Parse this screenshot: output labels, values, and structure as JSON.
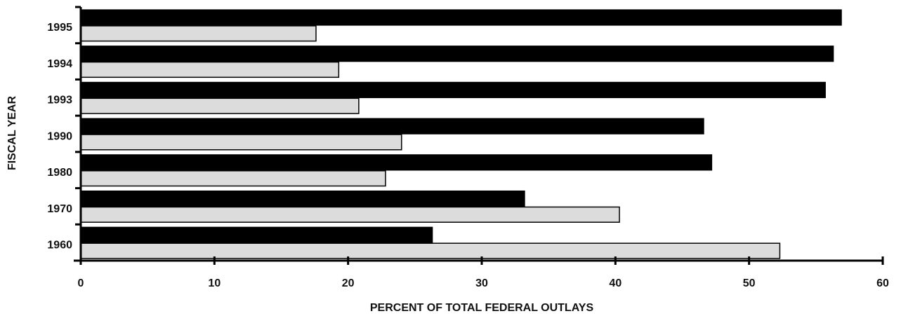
{
  "chart_data": {
    "type": "bar",
    "orientation": "horizontal",
    "xlabel": "PERCENT OF TOTAL FEDERAL OUTLAYS",
    "ylabel": "FISCAL YEAR",
    "categories": [
      "1995",
      "1994",
      "1993",
      "1990",
      "1980",
      "1970",
      "1960"
    ],
    "series": [
      {
        "color": "#000000",
        "values": [
          56.9,
          56.3,
          55.7,
          46.6,
          47.2,
          33.2,
          26.3
        ]
      },
      {
        "color": "#dcdcdc",
        "values": [
          17.6,
          19.3,
          20.8,
          24.0,
          22.8,
          40.3,
          52.3
        ]
      }
    ],
    "xlim": [
      0,
      60
    ],
    "xticks": [
      0,
      10,
      20,
      30,
      40,
      50,
      60
    ]
  }
}
